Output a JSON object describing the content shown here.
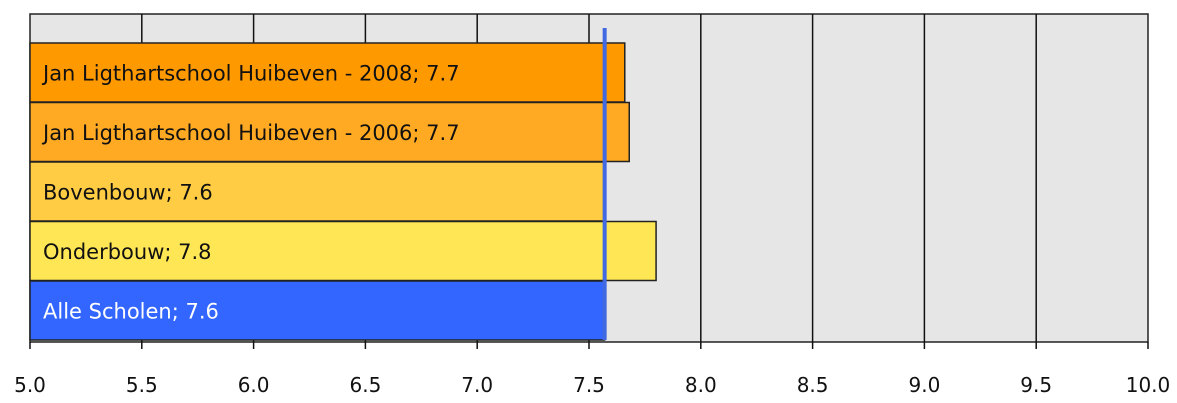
{
  "chart_data": {
    "type": "bar",
    "orientation": "horizontal",
    "categories": [
      "Jan Ligthartschool Huibeven - 2008; 7.7",
      "Jan Ligthartschool Huibeven - 2006; 7.7",
      "Bovenbouw; 7.6",
      "Onderbouw; 7.8",
      "Alle Scholen; 7.6"
    ],
    "values": [
      7.66,
      7.68,
      7.57,
      7.8,
      7.57
    ],
    "bar_colors": [
      "#ff9900",
      "#ffaa22",
      "#ffcc44",
      "#ffe655",
      "#3366ff"
    ],
    "label_colors": [
      "#111111",
      "#111111",
      "#111111",
      "#111111",
      "#ffffff"
    ],
    "reference_line": {
      "value": 7.57,
      "color": "#4169e1"
    },
    "xlim": [
      5.0,
      10.0
    ],
    "x_ticks": [
      "5.0",
      "5.5",
      "6.0",
      "6.5",
      "7.0",
      "7.5",
      "8.0",
      "8.5",
      "9.0",
      "9.5",
      "10.0"
    ],
    "grid": true,
    "plot_background": "#e6e6e6",
    "title": "",
    "xlabel": "",
    "ylabel": ""
  }
}
